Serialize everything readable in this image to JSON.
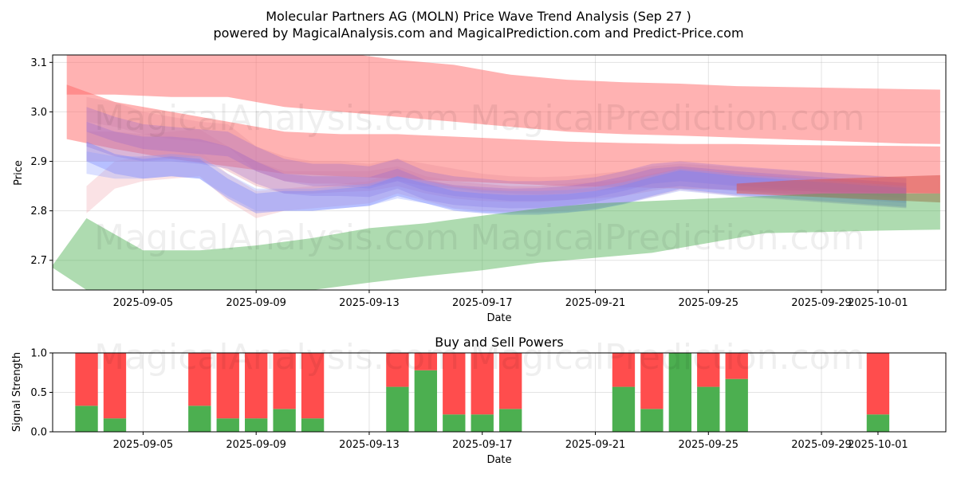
{
  "chart_data": [
    {
      "type": "area",
      "title": "Molecular Partners AG (MOLN) Price Wave Trend Analysis (Sep 27 )",
      "subtitle": "powered by MagicalAnalysis.com and MagicalPrediction.com and Predict-Price.com",
      "xlabel": "Date",
      "ylabel": "Price",
      "x_start": "2025-09-02",
      "xlim": [
        -0.2,
        31.4
      ],
      "ylim": [
        2.64,
        3.115
      ],
      "yticks": [
        "2.7",
        "2.8",
        "2.9",
        "3.0",
        "3.1"
      ],
      "xticks": [
        {
          "day": 3,
          "label": "2025-09-05"
        },
        {
          "day": 7,
          "label": "2025-09-09"
        },
        {
          "day": 11,
          "label": "2025-09-13"
        },
        {
          "day": 15,
          "label": "2025-09-17"
        },
        {
          "day": 19,
          "label": "2025-09-21"
        },
        {
          "day": 23,
          "label": "2025-09-25"
        },
        {
          "day": 27,
          "label": "2025-09-29"
        },
        {
          "day": 29,
          "label": "2025-10-01"
        }
      ],
      "watermarks": [
        "MagicalAnalysis.com",
        "MagicalPrediction.com"
      ],
      "series": [
        {
          "name": "upper-red-band",
          "color": "#ff6666",
          "opacity": 0.5,
          "x": [
            0.3,
            2,
            4,
            6,
            8,
            10,
            12,
            14,
            16,
            18,
            20,
            22,
            24,
            26,
            28,
            30,
            31.2
          ],
          "upper": [
            3.12,
            3.12,
            3.12,
            3.12,
            3.12,
            3.12,
            3.105,
            3.095,
            3.075,
            3.065,
            3.06,
            3.057,
            3.052,
            3.05,
            3.048,
            3.046,
            3.045
          ],
          "lower": [
            3.035,
            3.035,
            3.03,
            3.03,
            3.01,
            3.0,
            2.99,
            2.98,
            2.97,
            2.96,
            2.955,
            2.952,
            2.948,
            2.944,
            2.94,
            2.936,
            2.935
          ]
        },
        {
          "name": "middle-red-band",
          "color": "#ff6666",
          "opacity": 0.5,
          "x": [
            0.3,
            2,
            4,
            6,
            8,
            10,
            12,
            14,
            16,
            18,
            20,
            22,
            24,
            26,
            28,
            30,
            31.2
          ],
          "upper": [
            3.055,
            3.02,
            3.0,
            2.98,
            2.96,
            2.955,
            2.955,
            2.95,
            2.945,
            2.94,
            2.937,
            2.935,
            2.935,
            2.933,
            2.932,
            2.931,
            2.93
          ],
          "lower": [
            2.945,
            2.925,
            2.905,
            2.89,
            2.875,
            2.87,
            2.865,
            2.86,
            2.855,
            2.85,
            2.848,
            2.845,
            2.842,
            2.84,
            2.838,
            2.836,
            2.835
          ]
        },
        {
          "name": "wave-band-pink-1",
          "color": "#e8909a",
          "opacity": 0.35,
          "x": [
            1,
            2,
            3,
            4,
            5,
            6,
            7,
            8,
            9,
            10,
            11,
            12,
            13,
            14,
            15,
            16,
            17,
            18,
            19,
            20,
            21,
            22,
            23,
            24,
            25,
            26,
            27,
            28,
            29,
            30
          ],
          "upper": [
            3.03,
            3.02,
            3.0,
            2.99,
            2.98,
            2.975,
            2.93,
            2.91,
            2.9,
            2.9,
            2.895,
            2.905,
            2.895,
            2.885,
            2.875,
            2.87,
            2.868,
            2.87,
            2.875,
            2.88,
            2.89,
            2.895,
            2.892,
            2.888,
            2.884,
            2.88,
            2.877,
            2.874,
            2.871,
            2.868
          ],
          "lower": [
            2.98,
            2.97,
            2.955,
            2.945,
            2.94,
            2.93,
            2.88,
            2.86,
            2.855,
            2.855,
            2.85,
            2.86,
            2.85,
            2.845,
            2.838,
            2.835,
            2.833,
            2.835,
            2.84,
            2.845,
            2.855,
            2.86,
            2.857,
            2.853,
            2.85,
            2.847,
            2.844,
            2.841,
            2.838,
            2.835
          ]
        },
        {
          "name": "wave-band-pink-2",
          "color": "#e8909a",
          "opacity": 0.35,
          "x": [
            1,
            2,
            3,
            4,
            5,
            6,
            7,
            8,
            9,
            10,
            11,
            12,
            13,
            14,
            15,
            16,
            17,
            18,
            19,
            20,
            21,
            22,
            23,
            24,
            25,
            26,
            27,
            28,
            29,
            30
          ],
          "upper": [
            2.96,
            2.96,
            2.955,
            2.96,
            2.965,
            2.93,
            2.9,
            2.88,
            2.88,
            2.88,
            2.88,
            2.89,
            2.87,
            2.86,
            2.855,
            2.85,
            2.85,
            2.855,
            2.858,
            2.862,
            2.875,
            2.885,
            2.88,
            2.875,
            2.872,
            2.868,
            2.865,
            2.862,
            2.86,
            2.857
          ],
          "lower": [
            2.9,
            2.9,
            2.9,
            2.905,
            2.91,
            2.88,
            2.85,
            2.835,
            2.835,
            2.838,
            2.84,
            2.85,
            2.835,
            2.825,
            2.82,
            2.818,
            2.818,
            2.822,
            2.825,
            2.83,
            2.84,
            2.85,
            2.846,
            2.842,
            2.838,
            2.835,
            2.832,
            2.829,
            2.826,
            2.823
          ]
        },
        {
          "name": "wave-band-pink-3",
          "color": "#f0a0a8",
          "opacity": 0.3,
          "x": [
            1,
            2,
            3,
            4,
            5,
            6,
            7,
            8,
            9,
            10,
            11,
            12,
            13,
            14,
            15,
            16,
            17,
            18,
            19,
            20,
            21,
            22,
            23,
            24,
            25,
            26,
            27,
            28,
            29,
            30
          ],
          "upper": [
            2.85,
            2.9,
            2.91,
            2.915,
            2.92,
            2.875,
            2.84,
            2.845,
            2.85,
            2.855,
            2.86,
            2.88,
            2.865,
            2.85,
            2.845,
            2.84,
            2.84,
            2.842,
            2.846,
            2.855,
            2.868,
            2.882,
            2.876,
            2.87,
            2.866,
            2.862,
            2.858,
            2.854,
            2.85,
            2.846
          ],
          "lower": [
            2.795,
            2.845,
            2.86,
            2.865,
            2.87,
            2.82,
            2.785,
            2.8,
            2.805,
            2.81,
            2.815,
            2.835,
            2.82,
            2.805,
            2.8,
            2.797,
            2.797,
            2.8,
            2.805,
            2.815,
            2.828,
            2.842,
            2.836,
            2.83,
            2.826,
            2.822,
            2.818,
            2.814,
            2.81,
            2.806
          ]
        },
        {
          "name": "wave-band-purple-1",
          "color": "#9966cc",
          "opacity": 0.3,
          "x": [
            1,
            2,
            3,
            4,
            5,
            6,
            7,
            8,
            9,
            10,
            11,
            12,
            13,
            14,
            15,
            16,
            17,
            18,
            19,
            20,
            21,
            22,
            23,
            24,
            25,
            26,
            27,
            28,
            29,
            30
          ],
          "upper": [
            3.01,
            2.99,
            2.975,
            2.97,
            2.965,
            2.96,
            2.93,
            2.905,
            2.895,
            2.895,
            2.89,
            2.905,
            2.88,
            2.87,
            2.865,
            2.86,
            2.86,
            2.862,
            2.868,
            2.88,
            2.895,
            2.9,
            2.895,
            2.89,
            2.886,
            2.882,
            2.878,
            2.874,
            2.87,
            2.866
          ],
          "lower": [
            2.96,
            2.94,
            2.925,
            2.92,
            2.915,
            2.91,
            2.88,
            2.86,
            2.85,
            2.85,
            2.845,
            2.86,
            2.84,
            2.83,
            2.825,
            2.82,
            2.82,
            2.822,
            2.828,
            2.84,
            2.855,
            2.86,
            2.855,
            2.85,
            2.846,
            2.842,
            2.838,
            2.834,
            2.83,
            2.826
          ]
        },
        {
          "name": "wave-band-purple-2",
          "color": "#9966cc",
          "opacity": 0.3,
          "x": [
            1,
            2,
            3,
            4,
            5,
            6,
            7,
            8,
            9,
            10,
            11,
            12,
            13,
            14,
            15,
            16,
            17,
            18,
            19,
            20,
            21,
            22,
            23,
            24,
            25,
            26,
            27,
            28,
            29,
            30
          ],
          "upper": [
            2.98,
            2.96,
            2.95,
            2.95,
            2.945,
            2.93,
            2.9,
            2.875,
            2.87,
            2.87,
            2.868,
            2.885,
            2.862,
            2.852,
            2.848,
            2.845,
            2.846,
            2.85,
            2.858,
            2.87,
            2.885,
            2.89,
            2.885,
            2.88,
            2.876,
            2.872,
            2.868,
            2.864,
            2.86,
            2.856
          ],
          "lower": [
            2.93,
            2.91,
            2.9,
            2.9,
            2.895,
            2.885,
            2.855,
            2.835,
            2.83,
            2.83,
            2.828,
            2.845,
            2.822,
            2.812,
            2.808,
            2.805,
            2.806,
            2.81,
            2.818,
            2.83,
            2.845,
            2.85,
            2.845,
            2.84,
            2.836,
            2.832,
            2.828,
            2.824,
            2.82,
            2.816
          ]
        },
        {
          "name": "wave-band-blue-1",
          "color": "#6677ff",
          "opacity": 0.35,
          "x": [
            1,
            2,
            3,
            4,
            5,
            6,
            7,
            8,
            9,
            10,
            11,
            12,
            13,
            14,
            15,
            16,
            17,
            18,
            19,
            20,
            21,
            22,
            23,
            24,
            25,
            26,
            27,
            28,
            29,
            30
          ],
          "upper": [
            2.94,
            2.915,
            2.905,
            2.91,
            2.905,
            2.865,
            2.835,
            2.84,
            2.84,
            2.845,
            2.85,
            2.87,
            2.855,
            2.84,
            2.835,
            2.832,
            2.832,
            2.834,
            2.84,
            2.852,
            2.868,
            2.882,
            2.876,
            2.87,
            2.866,
            2.862,
            2.858,
            2.854,
            2.85,
            2.846
          ],
          "lower": [
            2.9,
            2.875,
            2.865,
            2.87,
            2.865,
            2.825,
            2.795,
            2.8,
            2.8,
            2.805,
            2.81,
            2.83,
            2.815,
            2.8,
            2.795,
            2.792,
            2.792,
            2.796,
            2.802,
            2.814,
            2.83,
            2.844,
            2.838,
            2.832,
            2.828,
            2.824,
            2.82,
            2.816,
            2.812,
            2.808
          ]
        },
        {
          "name": "wave-band-blue-2",
          "color": "#8899ff",
          "opacity": 0.3,
          "x": [
            1,
            2,
            3,
            4,
            5,
            6,
            7,
            8,
            9,
            10,
            11,
            12,
            13,
            14,
            15,
            16,
            17,
            18,
            19,
            20,
            21,
            22,
            23,
            24,
            25,
            26,
            27,
            28,
            29,
            30
          ],
          "upper": [
            2.92,
            2.91,
            2.91,
            2.915,
            2.91,
            2.875,
            2.845,
            2.845,
            2.845,
            2.85,
            2.855,
            2.87,
            2.86,
            2.848,
            2.842,
            2.84,
            2.84,
            2.842,
            2.848,
            2.858,
            2.872,
            2.885,
            2.88,
            2.874,
            2.87,
            2.866,
            2.862,
            2.858,
            2.854,
            2.85
          ],
          "lower": [
            2.875,
            2.865,
            2.865,
            2.87,
            2.865,
            2.83,
            2.8,
            2.8,
            2.8,
            2.805,
            2.81,
            2.825,
            2.815,
            2.803,
            2.797,
            2.795,
            2.795,
            2.797,
            2.803,
            2.813,
            2.827,
            2.84,
            2.835,
            2.829,
            2.825,
            2.821,
            2.817,
            2.813,
            2.809,
            2.805
          ]
        },
        {
          "name": "dark-red-band",
          "color": "#d9534f",
          "opacity": 0.55,
          "x": [
            24,
            26,
            28,
            30,
            31.2
          ],
          "upper": [
            2.855,
            2.862,
            2.866,
            2.87,
            2.872
          ],
          "lower": [
            2.835,
            2.83,
            2.825,
            2.82,
            2.817
          ]
        },
        {
          "name": "lower-green-band",
          "color": "#4caf50",
          "opacity": 0.45,
          "x": [
            -0.2,
            1,
            3,
            5,
            7,
            9,
            11,
            13,
            15,
            17,
            19,
            21,
            23,
            25,
            27,
            29,
            31.2
          ],
          "upper": [
            2.69,
            2.785,
            2.72,
            2.72,
            2.73,
            2.745,
            2.765,
            2.775,
            2.79,
            2.805,
            2.815,
            2.82,
            2.825,
            2.83,
            2.835,
            2.835,
            2.835
          ],
          "lower": [
            2.685,
            2.64,
            2.62,
            2.62,
            2.63,
            2.64,
            2.655,
            2.668,
            2.68,
            2.695,
            2.705,
            2.715,
            2.735,
            2.755,
            2.757,
            2.76,
            2.762
          ]
        }
      ]
    },
    {
      "type": "bar",
      "title": "Buy and Sell Powers",
      "xlabel": "Date",
      "ylabel": "Signal Strength",
      "ylim": [
        0,
        1
      ],
      "yticks": [
        "0.0",
        "0.5",
        "1.0"
      ],
      "buy_color": "#4caf50",
      "sell_color": "#ff4d4d",
      "days": [
        1,
        2,
        5,
        6,
        7,
        8,
        9,
        12,
        13,
        14,
        15,
        16,
        20,
        21,
        22,
        23,
        24,
        29
      ],
      "buy": [
        0.33,
        0.17,
        0.33,
        0.17,
        0.17,
        0.29,
        0.17,
        0.57,
        0.78,
        0.22,
        0.22,
        0.29,
        0.57,
        0.29,
        1.0,
        0.57,
        0.67,
        0.22
      ],
      "sell": [
        0.67,
        0.83,
        0.67,
        0.83,
        0.83,
        0.71,
        0.83,
        0.43,
        0.22,
        0.78,
        0.78,
        0.71,
        0.43,
        0.71,
        0.0,
        0.43,
        0.33,
        0.78
      ]
    }
  ]
}
